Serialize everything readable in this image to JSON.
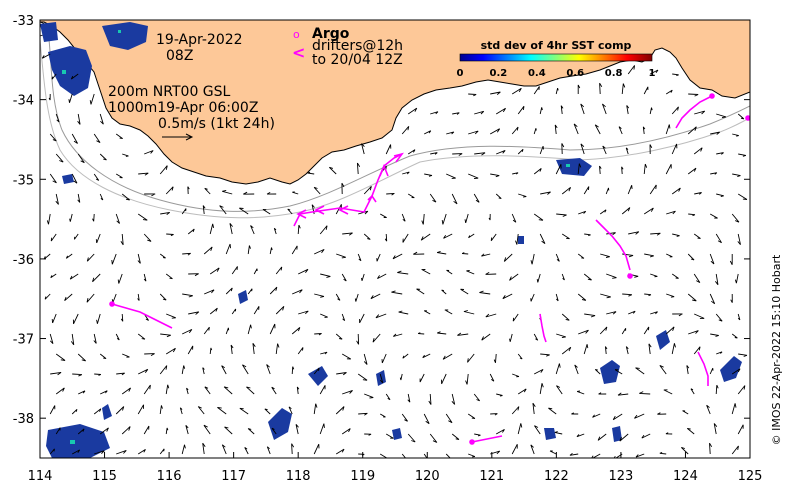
{
  "map": {
    "lon_ticks": [
      "114",
      "115",
      "116",
      "117",
      "118",
      "119",
      "120",
      "121",
      "122",
      "123",
      "124",
      "125"
    ],
    "lat_ticks": [
      "-33",
      "-34",
      "-35",
      "-36",
      "-37",
      "-38"
    ],
    "lon_range": [
      114,
      125
    ],
    "lat_range": [
      -38.5,
      -33
    ]
  },
  "annotations": {
    "date": "19-Apr-2022",
    "time": "08Z",
    "depth_line1": "200m  NRT00 GSL",
    "depth_line2": "1000m19-Apr 06:00Z",
    "scale_label": "0.5m/s (1kt 24h)"
  },
  "argo": {
    "title": "Argo",
    "line1": "drifters@12h",
    "line2": "to 20/04 12Z",
    "marker_symbol": "o",
    "arrow_symbol": "<"
  },
  "colorbar": {
    "title": "std dev of 4hr SST comp",
    "ticks": [
      "0",
      "0.2",
      "0.4",
      "0.6",
      "0.8",
      "1"
    ]
  },
  "credit": "© IMOS 22-Apr-2022 15:10 Hobart",
  "colors": {
    "land": "#fdc898",
    "drifter": "#ff00ff",
    "sst_patch": "#1a3aa0",
    "isobath": "#a0a0a0"
  }
}
